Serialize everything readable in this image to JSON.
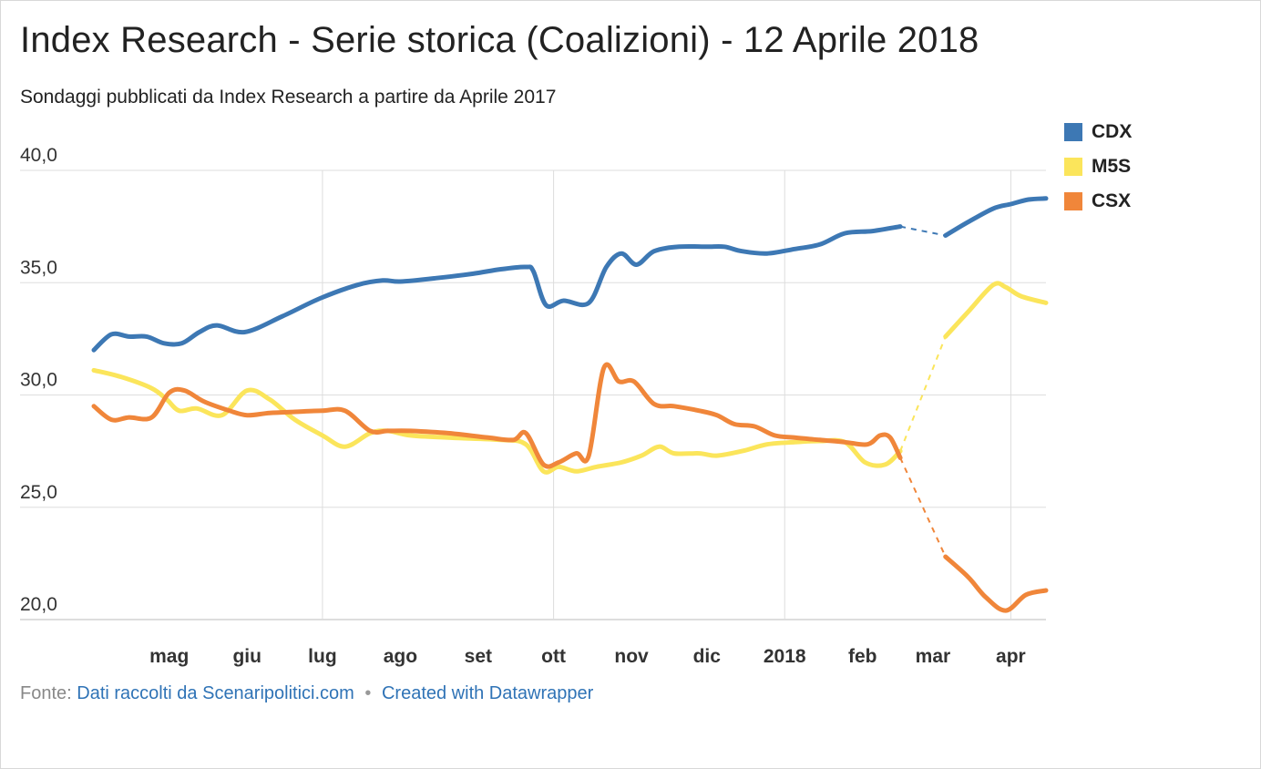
{
  "title": "Index Research - Serie storica (Coalizioni) - 12 Aprile 2018",
  "subtitle": "Sondaggi pubblicati da Index Research a partire da Aprile 2017",
  "footer": {
    "source_prefix": "Fonte:",
    "source_link": "Dati raccolti da Scenaripolitici.com",
    "separator": "•",
    "credit_link": "Created with Datawrapper"
  },
  "chart_data": {
    "type": "line",
    "x_axis": {
      "type": "date",
      "range": [
        "2017-04-01",
        "2018-04-15"
      ],
      "ticks": [
        {
          "date": "2017-05-01",
          "label": "mag"
        },
        {
          "date": "2017-06-01",
          "label": "giu"
        },
        {
          "date": "2017-07-01",
          "label": "lug"
        },
        {
          "date": "2017-08-01",
          "label": "ago"
        },
        {
          "date": "2017-09-01",
          "label": "set"
        },
        {
          "date": "2017-10-01",
          "label": "ott"
        },
        {
          "date": "2017-11-01",
          "label": "nov"
        },
        {
          "date": "2017-12-01",
          "label": "dic"
        },
        {
          "date": "2018-01-01",
          "label": "2018"
        },
        {
          "date": "2018-02-01",
          "label": "feb"
        },
        {
          "date": "2018-03-01",
          "label": "mar"
        },
        {
          "date": "2018-04-01",
          "label": "apr"
        }
      ],
      "gridlines": [
        "2017-07-01",
        "2017-10-01",
        "2018-01-01",
        "2018-04-01"
      ]
    },
    "y_axis": {
      "range": [
        20,
        40
      ],
      "ticks": [
        {
          "value": 40,
          "label": "40,0"
        },
        {
          "value": 35,
          "label": "35,0"
        },
        {
          "value": 30,
          "label": "30,0"
        },
        {
          "value": 25,
          "label": "25,0"
        },
        {
          "value": 20,
          "label": "20,0"
        }
      ],
      "grid": true
    },
    "legend_position": "top-right",
    "gap": {
      "from": "2018-02-16",
      "to": "2018-03-06",
      "style": "dashed"
    },
    "series": [
      {
        "name": "CDX",
        "color": "#3d78b4",
        "points": [
          [
            "2017-04-01",
            32.0
          ],
          [
            "2017-04-08",
            32.7
          ],
          [
            "2017-04-15",
            32.6
          ],
          [
            "2017-04-22",
            32.6
          ],
          [
            "2017-04-29",
            32.3
          ],
          [
            "2017-05-06",
            32.3
          ],
          [
            "2017-05-13",
            32.8
          ],
          [
            "2017-05-20",
            33.1
          ],
          [
            "2017-05-31",
            32.8
          ],
          [
            "2017-06-15",
            33.5
          ],
          [
            "2017-06-30",
            34.3
          ],
          [
            "2017-07-15",
            34.9
          ],
          [
            "2017-07-25",
            35.1
          ],
          [
            "2017-08-01",
            35.05
          ],
          [
            "2017-08-15",
            35.2
          ],
          [
            "2017-08-30",
            35.4
          ],
          [
            "2017-09-10",
            35.6
          ],
          [
            "2017-09-20",
            35.7
          ],
          [
            "2017-09-23",
            35.5
          ],
          [
            "2017-09-28",
            34.0
          ],
          [
            "2017-10-05",
            34.2
          ],
          [
            "2017-10-15",
            34.1
          ],
          [
            "2017-10-22",
            35.7
          ],
          [
            "2017-10-28",
            36.3
          ],
          [
            "2017-11-03",
            35.8
          ],
          [
            "2017-11-10",
            36.4
          ],
          [
            "2017-11-20",
            36.6
          ],
          [
            "2017-12-01",
            36.6
          ],
          [
            "2017-12-08",
            36.6
          ],
          [
            "2017-12-15",
            36.4
          ],
          [
            "2017-12-25",
            36.3
          ],
          [
            "2018-01-05",
            36.5
          ],
          [
            "2018-01-15",
            36.7
          ],
          [
            "2018-01-25",
            37.2
          ],
          [
            "2018-02-05",
            37.3
          ],
          [
            "2018-02-16",
            37.5
          ],
          [
            "2018-03-06",
            37.1
          ],
          [
            "2018-03-15",
            37.7
          ],
          [
            "2018-03-25",
            38.3
          ],
          [
            "2018-04-01",
            38.5
          ],
          [
            "2018-04-08",
            38.7
          ],
          [
            "2018-04-15",
            38.75
          ]
        ]
      },
      {
        "name": "M5S",
        "color": "#fbe55b",
        "points": [
          [
            "2017-04-01",
            31.1
          ],
          [
            "2017-04-12",
            30.8
          ],
          [
            "2017-04-24",
            30.3
          ],
          [
            "2017-04-30",
            29.8
          ],
          [
            "2017-05-05",
            29.3
          ],
          [
            "2017-05-12",
            29.4
          ],
          [
            "2017-05-22",
            29.1
          ],
          [
            "2017-06-01",
            30.2
          ],
          [
            "2017-06-10",
            29.8
          ],
          [
            "2017-06-20",
            28.9
          ],
          [
            "2017-07-01",
            28.2
          ],
          [
            "2017-07-10",
            27.7
          ],
          [
            "2017-07-20",
            28.3
          ],
          [
            "2017-07-27",
            28.4
          ],
          [
            "2017-08-05",
            28.2
          ],
          [
            "2017-08-20",
            28.1
          ],
          [
            "2017-09-10",
            28.0
          ],
          [
            "2017-09-20",
            27.8
          ],
          [
            "2017-09-27",
            26.6
          ],
          [
            "2017-10-03",
            26.8
          ],
          [
            "2017-10-10",
            26.6
          ],
          [
            "2017-10-18",
            26.8
          ],
          [
            "2017-10-28",
            27.0
          ],
          [
            "2017-11-05",
            27.3
          ],
          [
            "2017-11-12",
            27.7
          ],
          [
            "2017-11-18",
            27.4
          ],
          [
            "2017-11-28",
            27.4
          ],
          [
            "2017-12-05",
            27.3
          ],
          [
            "2017-12-15",
            27.5
          ],
          [
            "2017-12-25",
            27.8
          ],
          [
            "2018-01-05",
            27.9
          ],
          [
            "2018-01-15",
            27.95
          ],
          [
            "2018-01-25",
            27.9
          ],
          [
            "2018-02-02",
            27.0
          ],
          [
            "2018-02-10",
            26.9
          ],
          [
            "2018-02-16",
            27.5
          ],
          [
            "2018-03-06",
            32.6
          ],
          [
            "2018-03-15",
            33.7
          ],
          [
            "2018-03-25",
            34.9
          ],
          [
            "2018-03-30",
            34.8
          ],
          [
            "2018-04-05",
            34.4
          ],
          [
            "2018-04-15",
            34.1
          ]
        ]
      },
      {
        "name": "CSX",
        "color": "#f0863a",
        "points": [
          [
            "2017-04-01",
            29.5
          ],
          [
            "2017-04-08",
            28.9
          ],
          [
            "2017-04-15",
            29.0
          ],
          [
            "2017-04-24",
            29.0
          ],
          [
            "2017-05-01",
            30.1
          ],
          [
            "2017-05-07",
            30.2
          ],
          [
            "2017-05-15",
            29.7
          ],
          [
            "2017-05-25",
            29.3
          ],
          [
            "2017-06-01",
            29.1
          ],
          [
            "2017-06-10",
            29.2
          ],
          [
            "2017-06-20",
            29.25
          ],
          [
            "2017-07-01",
            29.3
          ],
          [
            "2017-07-10",
            29.3
          ],
          [
            "2017-07-20",
            28.4
          ],
          [
            "2017-07-27",
            28.4
          ],
          [
            "2017-08-05",
            28.4
          ],
          [
            "2017-08-20",
            28.3
          ],
          [
            "2017-09-05",
            28.1
          ],
          [
            "2017-09-15",
            28.0
          ],
          [
            "2017-09-20",
            28.3
          ],
          [
            "2017-09-27",
            26.9
          ],
          [
            "2017-10-03",
            27.0
          ],
          [
            "2017-10-10",
            27.4
          ],
          [
            "2017-10-15",
            27.3
          ],
          [
            "2017-10-21",
            31.2
          ],
          [
            "2017-10-27",
            30.6
          ],
          [
            "2017-11-02",
            30.6
          ],
          [
            "2017-11-10",
            29.6
          ],
          [
            "2017-11-18",
            29.5
          ],
          [
            "2017-11-28",
            29.3
          ],
          [
            "2017-12-05",
            29.1
          ],
          [
            "2017-12-12",
            28.7
          ],
          [
            "2017-12-20",
            28.6
          ],
          [
            "2017-12-28",
            28.2
          ],
          [
            "2018-01-05",
            28.1
          ],
          [
            "2018-01-15",
            28.0
          ],
          [
            "2018-01-25",
            27.9
          ],
          [
            "2018-02-03",
            27.8
          ],
          [
            "2018-02-08",
            28.2
          ],
          [
            "2018-02-12",
            28.1
          ],
          [
            "2018-02-16",
            27.2
          ],
          [
            "2018-03-06",
            22.8
          ],
          [
            "2018-03-15",
            21.9
          ],
          [
            "2018-03-22",
            21.0
          ],
          [
            "2018-03-30",
            20.4
          ],
          [
            "2018-04-07",
            21.1
          ],
          [
            "2018-04-15",
            21.3
          ]
        ]
      }
    ]
  }
}
